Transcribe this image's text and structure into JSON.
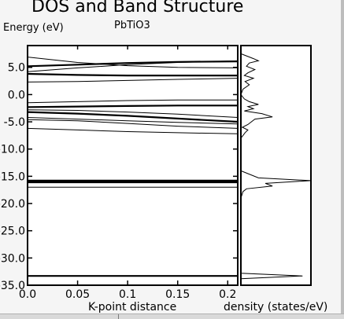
{
  "chart_data": [
    {
      "type": "line",
      "title": "DOS and Band Structure",
      "subtitle": "PbTiO3",
      "ylabel": "Energy (eV)",
      "xlabel": "K-point distance",
      "xlim": [
        0.0,
        0.21
      ],
      "ylim": [
        -35.0,
        9.0
      ],
      "x_ticks": [
        "0.0",
        "0.05",
        "0.1",
        "0.15",
        "0.2"
      ],
      "y_ticks": [
        "5.0",
        "0.0",
        "-5.0",
        "-10.0",
        "-15.0",
        "-20.0",
        "-25.0",
        "-30.0",
        "-35.0"
      ],
      "y_tick_values": [
        5,
        0,
        -5,
        -10,
        -15,
        -20,
        -25,
        -30,
        -35
      ],
      "x_tick_values": [
        0,
        0.05,
        0.1,
        0.15,
        0.2
      ],
      "x": [
        0.0,
        0.05,
        0.1,
        0.15,
        0.21
      ],
      "series": [
        {
          "values": [
            6.9,
            5.9,
            5.3,
            5.0,
            4.9
          ]
        },
        {
          "values": [
            5.2,
            5.5,
            5.8,
            6.0,
            6.1
          ]
        },
        {
          "values": [
            4.2,
            4.9,
            5.5,
            5.9,
            6.2
          ]
        },
        {
          "values": [
            3.8,
            3.6,
            3.5,
            3.5,
            3.5
          ]
        },
        {
          "values": [
            2.3,
            2.4,
            2.6,
            2.8,
            3.0
          ]
        },
        {
          "values": [
            -1.5,
            -1.3,
            -1.1,
            -1.0,
            -1.0
          ]
        },
        {
          "values": [
            -2.3,
            -2.2,
            -2.1,
            -2.0,
            -2.0
          ]
        },
        {
          "values": [
            -2.8,
            -2.9,
            -3.2,
            -3.6,
            -4.2
          ]
        },
        {
          "values": [
            -3.2,
            -3.5,
            -3.9,
            -4.4,
            -5.0
          ]
        },
        {
          "values": [
            -4.2,
            -4.5,
            -4.8,
            -5.1,
            -5.4
          ]
        },
        {
          "values": [
            -4.6,
            -4.8,
            -5.3,
            -5.8,
            -6.2
          ]
        },
        {
          "values": [
            -6.2,
            -6.5,
            -6.8,
            -7.0,
            -7.2
          ]
        },
        {
          "values": [
            -15.8,
            -15.8,
            -15.8,
            -15.8,
            -15.8
          ]
        },
        {
          "values": [
            -16.1,
            -16.1,
            -16.1,
            -16.1,
            -16.1
          ]
        },
        {
          "values": [
            -17.0,
            -17.0,
            -17.0,
            -17.0,
            -17.0
          ]
        },
        {
          "values": [
            -33.3,
            -33.3,
            -33.3,
            -33.3,
            -33.3
          ]
        }
      ]
    },
    {
      "type": "line",
      "xlabel": "density (states/eV)",
      "ylim": [
        -35.0,
        9.0
      ],
      "xlim": [
        0,
        1
      ],
      "energy": [
        7.5,
        6.6,
        6.2,
        5.8,
        5.2,
        4.6,
        4.0,
        3.5,
        3.0,
        2.4,
        1.8,
        1.0,
        0.0,
        -0.8,
        -1.3,
        -1.8,
        -2.2,
        -2.6,
        -3.0,
        -3.5,
        -4.1,
        -4.5,
        -5.0,
        -5.5,
        -6.0,
        -6.5,
        -7.0,
        -7.5,
        -8.0,
        -14.0,
        -15.3,
        -15.8,
        -16.3,
        -16.8,
        -17.3,
        -17.8,
        -19.0,
        -32.8,
        -33.3,
        -33.8,
        -35.0
      ],
      "density": [
        0.0,
        0.18,
        0.25,
        0.12,
        0.08,
        0.2,
        0.1,
        0.05,
        0.18,
        0.06,
        0.12,
        0.03,
        0.0,
        0.05,
        0.12,
        0.25,
        0.1,
        0.18,
        0.05,
        0.3,
        0.45,
        0.2,
        0.15,
        0.1,
        0.02,
        0.1,
        0.06,
        0.03,
        0.0,
        0.0,
        0.25,
        1.0,
        0.35,
        0.45,
        0.08,
        0.03,
        0.0,
        0.0,
        0.88,
        0.0,
        0.0
      ]
    }
  ]
}
